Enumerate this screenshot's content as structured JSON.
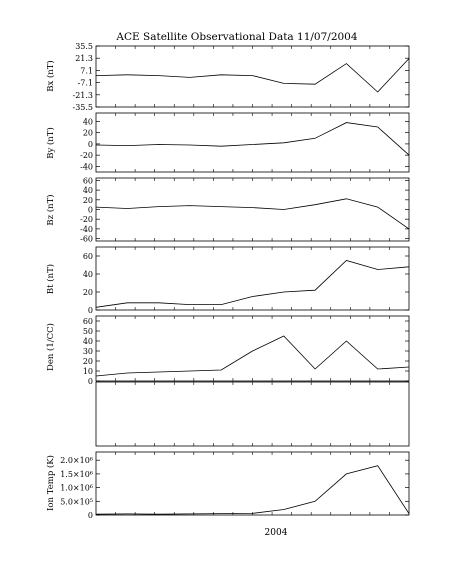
{
  "chart_data": [
    {
      "type": "line",
      "title": "ACE Satellite Observational Data   11/07/2004",
      "ylabel": "Bx (nT)",
      "ylim": [
        -35.5,
        35.5
      ],
      "yticks": [
        "35.5",
        "21.3",
        "7.1",
        "-7.1",
        "-21.3",
        "-35.5"
      ],
      "yticks_values": [
        35.5,
        21.3,
        7.1,
        -7.1,
        -21.3,
        -35.5
      ],
      "series": [
        {
          "x": [
            0,
            10,
            20,
            30,
            40,
            50,
            60,
            70,
            80,
            90,
            100
          ],
          "y": [
            1,
            2,
            1,
            -1,
            2,
            1,
            -8,
            -9,
            15,
            -18,
            21
          ]
        }
      ]
    },
    {
      "type": "line",
      "ylabel": "By (nT)",
      "ylim": [
        -50,
        55
      ],
      "yticks": [
        "40",
        "20",
        "0",
        "-20",
        "-40"
      ],
      "yticks_values": [
        40,
        20,
        0,
        -20,
        -40
      ],
      "series": [
        {
          "x": [
            0,
            10,
            20,
            30,
            40,
            50,
            60,
            70,
            80,
            90,
            100
          ],
          "y": [
            -2,
            -3,
            -1,
            -2,
            -4,
            -1,
            2,
            10,
            38,
            30,
            -20
          ]
        }
      ]
    },
    {
      "type": "line",
      "ylabel": "Bz (nT)",
      "ylim": [
        -65,
        65
      ],
      "yticks": [
        "60",
        "40",
        "20",
        "0",
        "-20",
        "-40",
        "-60"
      ],
      "yticks_values": [
        60,
        40,
        20,
        0,
        -20,
        -40,
        -60
      ],
      "series": [
        {
          "x": [
            0,
            10,
            20,
            30,
            40,
            50,
            60,
            70,
            80,
            90,
            100
          ],
          "y": [
            5,
            2,
            6,
            8,
            6,
            4,
            0,
            10,
            22,
            5,
            -40
          ]
        }
      ]
    },
    {
      "type": "line",
      "ylabel": "Bt (nT)",
      "ylim": [
        0,
        70
      ],
      "yticks": [
        "60",
        "40",
        "20",
        "0"
      ],
      "yticks_values": [
        60,
        40,
        20,
        0
      ],
      "series": [
        {
          "x": [
            0,
            10,
            20,
            30,
            40,
            50,
            60,
            70,
            80,
            90,
            100
          ],
          "y": [
            3,
            8,
            8,
            6,
            6,
            15,
            20,
            22,
            55,
            45,
            48
          ]
        }
      ]
    },
    {
      "type": "line",
      "ylabel": "Den (1/CC)",
      "ylim": [
        0,
        65
      ],
      "yticks": [
        "60",
        "50",
        "40",
        "30",
        "20",
        "10",
        "0"
      ],
      "yticks_values": [
        60,
        50,
        40,
        30,
        20,
        10,
        0
      ],
      "series": [
        {
          "x": [
            0,
            10,
            20,
            30,
            40,
            50,
            60,
            70,
            80,
            90,
            100
          ],
          "y": [
            5,
            8,
            9,
            10,
            11,
            30,
            45,
            12,
            40,
            12,
            14
          ]
        }
      ]
    },
    {
      "type": "line",
      "ylabel": "",
      "ylim": [
        0,
        1
      ],
      "yticks": [],
      "yticks_values": [],
      "series": []
    },
    {
      "type": "line",
      "ylabel": "Ion Temp (K)",
      "ylim": [
        0,
        2300000
      ],
      "yticks": [
        "2.0×10⁶",
        "1.5×10⁶",
        "1.0×10⁶",
        "5.0×10⁵",
        "0"
      ],
      "yticks_values": [
        2000000,
        1500000,
        1000000,
        500000,
        0
      ],
      "xlabel": "2004",
      "series": [
        {
          "x": [
            0,
            10,
            20,
            30,
            40,
            50,
            60,
            70,
            80,
            90,
            100
          ],
          "y": [
            30000,
            40000,
            30000,
            40000,
            50000,
            60000,
            200000,
            500000,
            1500000,
            1800000,
            50000
          ]
        }
      ]
    }
  ]
}
